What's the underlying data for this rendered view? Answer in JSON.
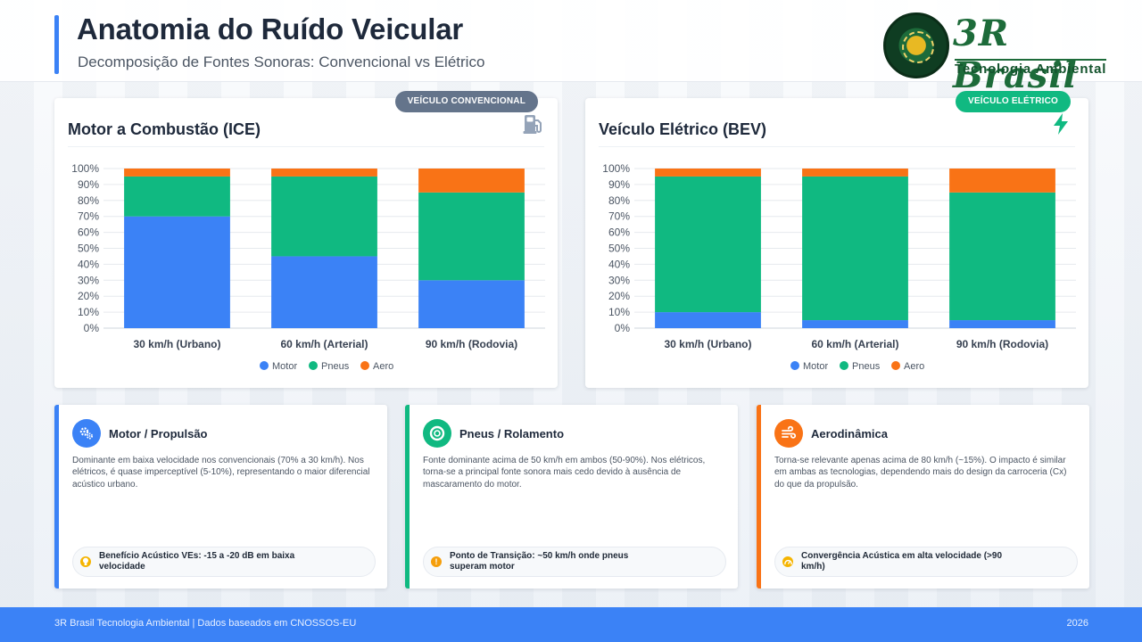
{
  "header": {
    "title": "Anatomia do Ruído Veicular",
    "subtitle": "Decomposição de Fontes Sonoras: Convencional vs Elétrico",
    "logo_name": "3R Brasil",
    "logo_tagline": "Tecnologia Ambiental"
  },
  "colors": {
    "accent": "#3b82f6",
    "motor": "#3b82f6",
    "pneus": "#10b981",
    "aero": "#f97316"
  },
  "charts": {
    "ice": {
      "title": "Motor a Combustão (ICE)",
      "badge": "VEÍCULO CONVENCIONAL",
      "icon": "fuel-pump-icon"
    },
    "bev": {
      "title": "Veículo Elétrico (BEV)",
      "badge": "VEÍCULO ELÉTRICO",
      "icon": "lightning-icon"
    }
  },
  "chart_data": [
    {
      "type": "bar",
      "stacked": true,
      "title": "Motor a Combustão (ICE)",
      "categories": [
        "30 km/h (Urbano)",
        "60 km/h (Arterial)",
        "90 km/h (Rodovia)"
      ],
      "series": [
        {
          "name": "Motor",
          "color": "#3b82f6",
          "values": [
            70,
            45,
            30
          ]
        },
        {
          "name": "Pneus",
          "color": "#10b981",
          "values": [
            25,
            50,
            55
          ]
        },
        {
          "name": "Aero",
          "color": "#f97316",
          "values": [
            5,
            5,
            15
          ]
        }
      ],
      "ylim": [
        0,
        100
      ],
      "yticks": [
        "0%",
        "10%",
        "20%",
        "30%",
        "40%",
        "50%",
        "60%",
        "70%",
        "80%",
        "90%",
        "100%"
      ],
      "grid": true,
      "legend": "bottom"
    },
    {
      "type": "bar",
      "stacked": true,
      "title": "Veículo Elétrico (BEV)",
      "categories": [
        "30 km/h (Urbano)",
        "60 km/h (Arterial)",
        "90 km/h (Rodovia)"
      ],
      "series": [
        {
          "name": "Motor",
          "color": "#3b82f6",
          "values": [
            10,
            5,
            5
          ]
        },
        {
          "name": "Pneus",
          "color": "#10b981",
          "values": [
            85,
            90,
            80
          ]
        },
        {
          "name": "Aero",
          "color": "#f97316",
          "values": [
            5,
            5,
            15
          ]
        }
      ],
      "ylim": [
        0,
        100
      ],
      "yticks": [
        "0%",
        "10%",
        "20%",
        "30%",
        "40%",
        "50%",
        "60%",
        "70%",
        "80%",
        "90%",
        "100%"
      ],
      "grid": true,
      "legend": "bottom"
    }
  ],
  "cards": {
    "motor": {
      "title": "Motor / Propulsão",
      "icon": "gears-icon",
      "text": "Dominante em baixa velocidade nos convencionais (70% a 30 km/h). Nos elétricos, é quase imperceptível (5-10%), representando o maior diferencial acústico urbano.",
      "note": "Benefício Acústico VEs: -15 a -20 dB em baixa velocidade",
      "note_icon": "lightbulb-icon"
    },
    "pneus": {
      "title": "Pneus / Rolamento",
      "icon": "tire-icon",
      "text": "Fonte dominante acima de 50 km/h em ambos (50-90%). Nos elétricos, torna-se a principal fonte sonora mais cedo devido à ausência de mascaramento do motor.",
      "note": "Ponto de Transição: ~50 km/h onde pneus superam motor",
      "note_icon": "exclamation-icon"
    },
    "aero": {
      "title": "Aerodinâmica",
      "icon": "wind-icon",
      "text": "Torna-se relevante apenas acima de 80 km/h (~15%). O impacto é similar em ambas as tecnologias, dependendo mais do design da carroceria (Cx) do que da propulsão.",
      "note": "Convergência Acústica em alta velocidade (>90 km/h)",
      "note_icon": "gauge-icon"
    }
  },
  "footer": {
    "left": "3R Brasil Tecnologia Ambiental | Dados baseados em CNOSSOS-EU",
    "right": "2026"
  }
}
